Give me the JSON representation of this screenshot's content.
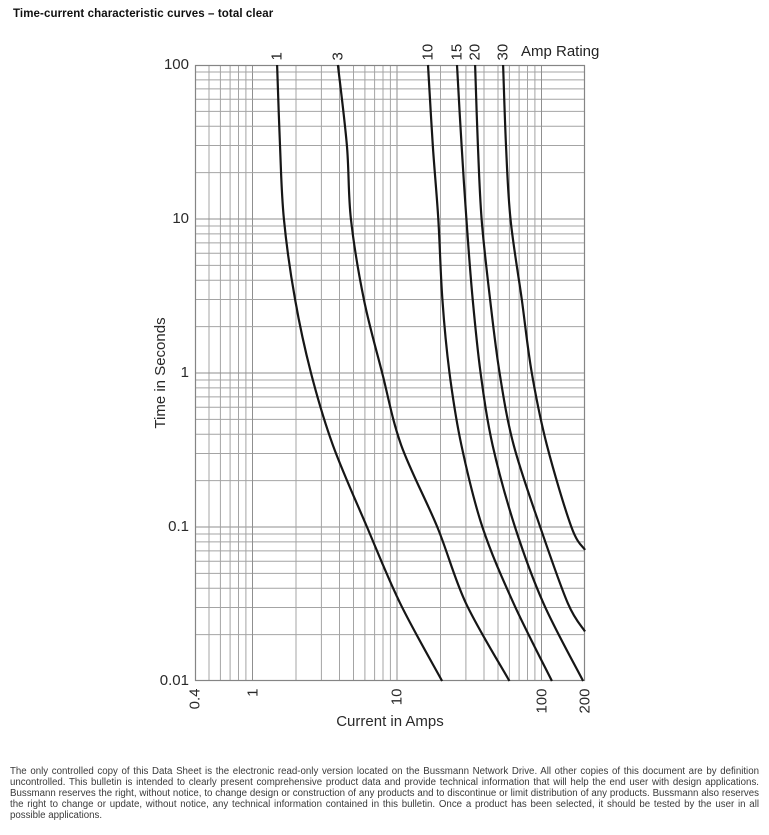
{
  "page": {
    "title": "Time-current characteristic curves – total clear",
    "footer": "The only controlled copy of this Data Sheet is the electronic read-only version located on the Bussmann Network Drive. All other copies of this document are by definition uncontrolled. This bulletin is intended to clearly present comprehensive product data and provide technical information that will help the end user with design applications. Bussmann reserves the right, without notice, to change design or construction of any products and to discontinue or limit distribution of any products. Bussmann also reserves the right to change or update, without notice, any technical information contained in this bulletin. Once a product has been selected, it should be tested by the user in all possible applications."
  },
  "chart_data": {
    "type": "line",
    "title": "Time-current characteristic curves – total clear",
    "xlabel": "Current in Amps",
    "ylabel": "Time in Seconds",
    "legend_title": "Amp Rating",
    "x_scale": "log",
    "y_scale": "log",
    "xlim": [
      0.4,
      200
    ],
    "ylim": [
      0.01,
      100
    ],
    "x_tick_labels": [
      "0.4",
      "1",
      "10",
      "100",
      "200"
    ],
    "y_tick_labels": [
      "100",
      "10",
      "1",
      "0.1",
      "0.01"
    ],
    "grid": "full log grid, major and minor lines",
    "colors": {
      "curve": "#161616",
      "grid_minor": "#a4a4a4",
      "grid_major": "#8f8f8f",
      "frame": "#858585",
      "text": "#2a2a2a"
    },
    "series": [
      {
        "name": "1",
        "points": [
          [
            1.48,
            100
          ],
          [
            1.55,
            30
          ],
          [
            1.65,
            10
          ],
          [
            1.97,
            3
          ],
          [
            2.54,
            1
          ],
          [
            3.6,
            0.34
          ],
          [
            6.2,
            0.1
          ],
          [
            10.5,
            0.032
          ],
          [
            20.5,
            0.01
          ]
        ]
      },
      {
        "name": "3",
        "points": [
          [
            3.9,
            100
          ],
          [
            4.5,
            30
          ],
          [
            4.8,
            10
          ],
          [
            5.9,
            3
          ],
          [
            7.9,
            1
          ],
          [
            10.7,
            0.34
          ],
          [
            19,
            0.1
          ],
          [
            30,
            0.032
          ],
          [
            60,
            0.01
          ]
        ]
      },
      {
        "name": "10",
        "points": [
          [
            16.4,
            100
          ],
          [
            17.7,
            30
          ],
          [
            19.3,
            10
          ],
          [
            20.6,
            3
          ],
          [
            23.1,
            1
          ],
          [
            27.9,
            0.34
          ],
          [
            39,
            0.1
          ],
          [
            64,
            0.032
          ],
          [
            118,
            0.01
          ]
        ]
      },
      {
        "name": "15",
        "points": [
          [
            26,
            100
          ],
          [
            28,
            30
          ],
          [
            30.2,
            10
          ],
          [
            33.4,
            3
          ],
          [
            37.9,
            1
          ],
          [
            45.9,
            0.34
          ],
          [
            65.6,
            0.1
          ],
          [
            103,
            0.032
          ],
          [
            194,
            0.01
          ]
        ]
      },
      {
        "name": "20",
        "points": [
          [
            34.7,
            100
          ],
          [
            36.3,
            30
          ],
          [
            38.5,
            10
          ],
          [
            44.1,
            3
          ],
          [
            51.3,
            1
          ],
          [
            64.2,
            0.34
          ],
          [
            98,
            0.1
          ],
          [
            152,
            0.032
          ],
          [
            200,
            0.021
          ]
        ]
      },
      {
        "name": "30",
        "points": [
          [
            54.2,
            100
          ],
          [
            56.8,
            30
          ],
          [
            61,
            10
          ],
          [
            73,
            3
          ],
          [
            85.7,
            1
          ],
          [
            109,
            0.34
          ],
          [
            161,
            0.1
          ],
          [
            200,
            0.071
          ]
        ]
      }
    ]
  }
}
